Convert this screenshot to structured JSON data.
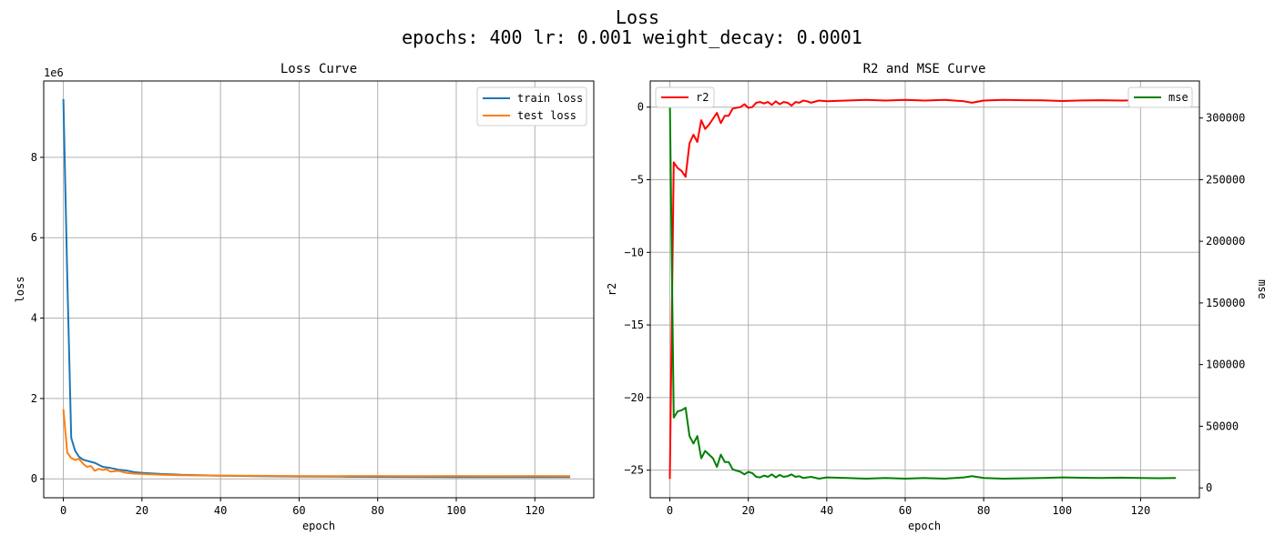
{
  "figure": {
    "title_line1": "Loss",
    "title_line2": "epochs: 400 lr: 0.001 weight_decay: 0.0001"
  },
  "chart_data": [
    {
      "type": "line",
      "title": "Loss Curve",
      "xlabel": "epoch",
      "ylabel": "loss",
      "y_offset_label": "1e6",
      "xlim": [
        -5,
        135
      ],
      "ylim": [
        -0.47,
        9.9
      ],
      "x_ticks": [
        0,
        20,
        40,
        60,
        80,
        100,
        120
      ],
      "y_ticks": [
        0,
        2,
        4,
        6,
        8
      ],
      "grid": true,
      "legend": "top-right",
      "series": [
        {
          "name": "train loss",
          "color": "#1f77b4",
          "points": [
            [
              0,
              9.45
            ],
            [
              1,
              5.0
            ],
            [
              2,
              1.02
            ],
            [
              3,
              0.7
            ],
            [
              4,
              0.55
            ],
            [
              5,
              0.48
            ],
            [
              6,
              0.45
            ],
            [
              8,
              0.4
            ],
            [
              10,
              0.3
            ],
            [
              12,
              0.27
            ],
            [
              14,
              0.23
            ],
            [
              16,
              0.21
            ],
            [
              18,
              0.17
            ],
            [
              20,
              0.15
            ],
            [
              22,
              0.14
            ],
            [
              25,
              0.12
            ],
            [
              28,
              0.11
            ],
            [
              30,
              0.1
            ],
            [
              35,
              0.09
            ],
            [
              40,
              0.08
            ],
            [
              50,
              0.07
            ],
            [
              60,
              0.06
            ],
            [
              70,
              0.055
            ],
            [
              80,
              0.05
            ],
            [
              90,
              0.048
            ],
            [
              100,
              0.046
            ],
            [
              110,
              0.045
            ],
            [
              120,
              0.044
            ],
            [
              129,
              0.043
            ]
          ]
        },
        {
          "name": "test loss",
          "color": "#ff7f0e",
          "points": [
            [
              0,
              1.73
            ],
            [
              1,
              0.65
            ],
            [
              2,
              0.52
            ],
            [
              3,
              0.47
            ],
            [
              4,
              0.5
            ],
            [
              5,
              0.38
            ],
            [
              6,
              0.3
            ],
            [
              7,
              0.32
            ],
            [
              8,
              0.2
            ],
            [
              9,
              0.25
            ],
            [
              10,
              0.22
            ],
            [
              11,
              0.24
            ],
            [
              12,
              0.18
            ],
            [
              14,
              0.2
            ],
            [
              16,
              0.15
            ],
            [
              18,
              0.13
            ],
            [
              20,
              0.12
            ],
            [
              25,
              0.1
            ],
            [
              30,
              0.09
            ],
            [
              40,
              0.08
            ],
            [
              50,
              0.075
            ],
            [
              60,
              0.072
            ],
            [
              70,
              0.07
            ],
            [
              80,
              0.072
            ],
            [
              90,
              0.07
            ],
            [
              100,
              0.071
            ],
            [
              110,
              0.07
            ],
            [
              120,
              0.071
            ],
            [
              129,
              0.07
            ]
          ]
        }
      ]
    },
    {
      "type": "line",
      "title": "R2 and MSE Curve",
      "xlabel": "epoch",
      "ylabel": "r2",
      "ylabel_right": "mse",
      "xlim": [
        -5,
        135
      ],
      "ylim": [
        -26.9,
        1.8
      ],
      "ylim_right": [
        -8000,
        330000
      ],
      "x_ticks": [
        0,
        20,
        40,
        60,
        80,
        100,
        120
      ],
      "y_ticks": [
        0,
        -5,
        -10,
        -15,
        -20,
        -25
      ],
      "y_ticks_right": [
        0,
        50000,
        100000,
        150000,
        200000,
        250000,
        300000
      ],
      "grid": true,
      "series": [
        {
          "name": "r2",
          "axis": "left",
          "legend": "top-left",
          "color": "#ff0000",
          "points": [
            [
              0,
              -25.6
            ],
            [
              1,
              -3.8
            ],
            [
              2,
              -4.2
            ],
            [
              3,
              -4.4
            ],
            [
              4,
              -4.8
            ],
            [
              5,
              -2.5
            ],
            [
              6,
              -1.9
            ],
            [
              7,
              -2.4
            ],
            [
              8,
              -0.9
            ],
            [
              9,
              -1.5
            ],
            [
              10,
              -1.2
            ],
            [
              11,
              -0.8
            ],
            [
              12,
              -0.4
            ],
            [
              13,
              -1.1
            ],
            [
              14,
              -0.6
            ],
            [
              15,
              -0.6
            ],
            [
              16,
              -0.1
            ],
            [
              18,
              0.0
            ],
            [
              19,
              0.2
            ],
            [
              20,
              -0.05
            ],
            [
              21,
              0.0
            ],
            [
              22,
              0.3
            ],
            [
              23,
              0.35
            ],
            [
              24,
              0.25
            ],
            [
              25,
              0.35
            ],
            [
              26,
              0.15
            ],
            [
              27,
              0.4
            ],
            [
              28,
              0.2
            ],
            [
              29,
              0.35
            ],
            [
              30,
              0.3
            ],
            [
              31,
              0.1
            ],
            [
              32,
              0.35
            ],
            [
              33,
              0.3
            ],
            [
              34,
              0.45
            ],
            [
              35,
              0.4
            ],
            [
              36,
              0.3
            ],
            [
              38,
              0.45
            ],
            [
              40,
              0.4
            ],
            [
              45,
              0.45
            ],
            [
              50,
              0.5
            ],
            [
              55,
              0.45
            ],
            [
              60,
              0.5
            ],
            [
              65,
              0.45
            ],
            [
              70,
              0.5
            ],
            [
              75,
              0.4
            ],
            [
              77,
              0.3
            ],
            [
              80,
              0.45
            ],
            [
              85,
              0.5
            ],
            [
              90,
              0.48
            ],
            [
              95,
              0.47
            ],
            [
              100,
              0.42
            ],
            [
              105,
              0.46
            ],
            [
              110,
              0.48
            ],
            [
              115,
              0.45
            ],
            [
              120,
              0.47
            ],
            [
              125,
              0.48
            ],
            [
              129,
              0.47
            ]
          ]
        },
        {
          "name": "mse",
          "axis": "right",
          "legend": "top-right",
          "color": "#008000",
          "points": [
            [
              0,
              316000
            ],
            [
              1,
              57000
            ],
            [
              2,
              62000
            ],
            [
              3,
              63000
            ],
            [
              4,
              65000
            ],
            [
              5,
              42000
            ],
            [
              6,
              36000
            ],
            [
              7,
              42000
            ],
            [
              8,
              24000
            ],
            [
              9,
              30000
            ],
            [
              10,
              27000
            ],
            [
              11,
              24000
            ],
            [
              12,
              17000
            ],
            [
              13,
              27000
            ],
            [
              14,
              21000
            ],
            [
              15,
              21000
            ],
            [
              16,
              15000
            ],
            [
              18,
              13000
            ],
            [
              19,
              11000
            ],
            [
              20,
              13000
            ],
            [
              21,
              12000
            ],
            [
              22,
              9000
            ],
            [
              23,
              8500
            ],
            [
              24,
              10000
            ],
            [
              25,
              9000
            ],
            [
              26,
              11000
            ],
            [
              27,
              8500
            ],
            [
              28,
              10500
            ],
            [
              29,
              9000
            ],
            [
              30,
              9500
            ],
            [
              31,
              11000
            ],
            [
              32,
              9000
            ],
            [
              33,
              9500
            ],
            [
              34,
              8000
            ],
            [
              36,
              9000
            ],
            [
              38,
              7500
            ],
            [
              40,
              8500
            ],
            [
              45,
              8000
            ],
            [
              50,
              7500
            ],
            [
              55,
              8000
            ],
            [
              60,
              7500
            ],
            [
              65,
              8000
            ],
            [
              70,
              7500
            ],
            [
              75,
              8500
            ],
            [
              77,
              9500
            ],
            [
              80,
              8000
            ],
            [
              85,
              7500
            ],
            [
              90,
              7800
            ],
            [
              95,
              8000
            ],
            [
              100,
              8500
            ],
            [
              105,
              8200
            ],
            [
              110,
              8000
            ],
            [
              115,
              8300
            ],
            [
              120,
              8100
            ],
            [
              125,
              7900
            ],
            [
              129,
              8000
            ]
          ]
        }
      ]
    }
  ]
}
